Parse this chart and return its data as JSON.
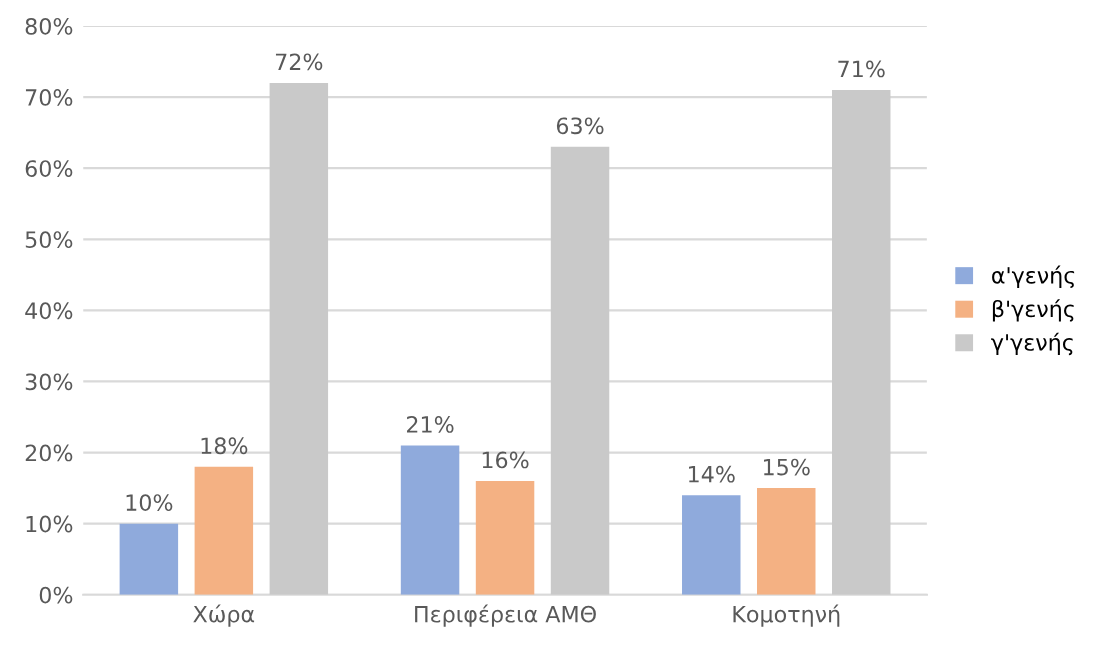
{
  "chart_data": {
    "type": "bar",
    "categories": [
      "Χώρα",
      "Περιφέρεια ΑΜΘ",
      "Κομοτηνή"
    ],
    "series": [
      {
        "name": "α'γενής",
        "color": "#8faadc",
        "values": [
          10,
          21,
          14
        ],
        "value_labels": [
          "10%",
          "21%",
          "14%"
        ]
      },
      {
        "name": "β'γενής",
        "color": "#f4b183",
        "values": [
          18,
          16,
          15
        ],
        "value_labels": [
          "18%",
          "16%",
          "15%"
        ]
      },
      {
        "name": "γ'γενής",
        "color": "#c9c9c9",
        "values": [
          72,
          63,
          71
        ],
        "value_labels": [
          "72%",
          "63%",
          "71%"
        ]
      }
    ],
    "ylim": [
      0,
      80
    ],
    "yticks": [
      {
        "value": 0,
        "label": "0%"
      },
      {
        "value": 10,
        "label": "10%"
      },
      {
        "value": 20,
        "label": "20%"
      },
      {
        "value": 30,
        "label": "30%"
      },
      {
        "value": 40,
        "label": "40%"
      },
      {
        "value": 50,
        "label": "50%"
      },
      {
        "value": 60,
        "label": "60%"
      },
      {
        "value": 70,
        "label": "70%"
      },
      {
        "value": 80,
        "label": "80%"
      }
    ],
    "grid": "y",
    "legend": "right"
  }
}
